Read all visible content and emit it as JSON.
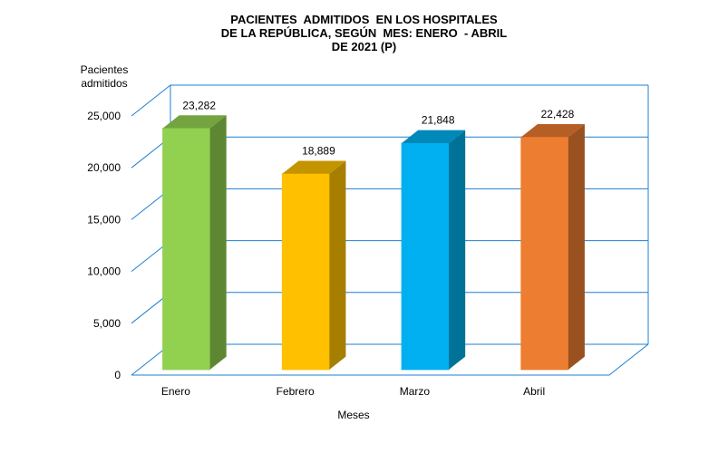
{
  "chart_data": {
    "type": "bar",
    "title": [
      "PACIENTES  ADMITIDOS  EN LOS HOSPITALES",
      "DE LA REPÚBLICA, SEGÚN  MES: ENERO  - ABRIL",
      "DE 2021 (P)"
    ],
    "xlabel": "Meses",
    "ylabel": [
      "Pacientes",
      "admitidos"
    ],
    "categories": [
      "Enero",
      "Febrero",
      "Marzo",
      "Abril"
    ],
    "values": [
      23282,
      18889,
      21848,
      22428
    ],
    "value_labels": [
      "23,282",
      "18,889",
      "21,848",
      "22,428"
    ],
    "ylim": [
      0,
      25000
    ],
    "yticks": [
      0,
      5000,
      10000,
      15000,
      20000,
      25000
    ],
    "ytick_labels": [
      "0",
      "5,000",
      "10,000",
      "15,000",
      "20,000",
      "25,000"
    ],
    "grid": true,
    "style": "3d-column",
    "colors": {
      "front": [
        "#92D050",
        "#FFC000",
        "#00B0F0",
        "#ED7D31"
      ],
      "side": [
        "#5E8733",
        "#A67F00",
        "#007298",
        "#9A5120"
      ],
      "top": [
        "#73A43F",
        "#C49400",
        "#0088B8",
        "#B65F25"
      ],
      "grid": "#1F7FD0"
    }
  }
}
